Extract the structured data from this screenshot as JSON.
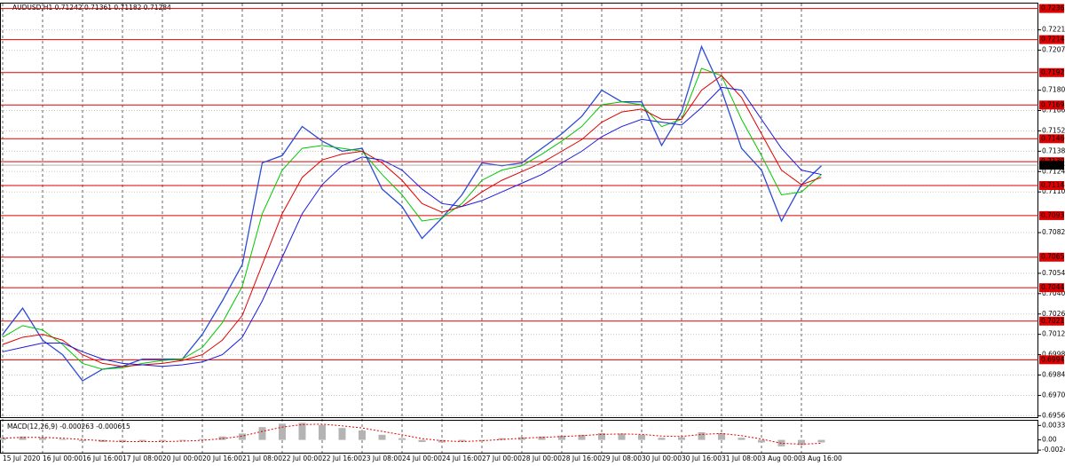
{
  "chart_data": [
    {
      "type": "line",
      "title": "AUDUSD,H1  0.71242 0.71361 0.71182 0.71284",
      "categories": [
        "15 Jul 2020",
        null,
        "16 Jul 00:00",
        null,
        "16 Jul 16:00",
        null,
        "17 Jul 08:00",
        null,
        "20 Jul 00:00",
        null,
        "20 Jul 16:00",
        null,
        "21 Jul 08:00",
        null,
        "22 Jul 00:00",
        null,
        "22 Jul 16:00",
        null,
        "23 Jul 08:00",
        null,
        "24 Jul 00:00",
        null,
        "24 Jul 16:00",
        null,
        "27 Jul 00:00",
        null,
        "28 Jul 00:00",
        null,
        "28 Jul 16:00",
        null,
        "29 Jul 08:00",
        null,
        "30 Jul 00:00",
        null,
        "30 Jul 16:00",
        null,
        "31 Jul 08:00",
        null,
        "3 Aug 00:00",
        null,
        "3 Aug 16:00",
        null
      ],
      "series": [
        {
          "color": "#2b4bd6",
          "values": [
            0.7012,
            0.703,
            0.7008,
            0.6998,
            0.698,
            0.6988,
            0.699,
            0.6995,
            0.6995,
            0.6995,
            0.7012,
            0.7035,
            0.706,
            0.713,
            0.7135,
            0.7155,
            0.7145,
            0.7138,
            0.714,
            0.7112,
            0.71,
            0.7078,
            0.7092,
            0.7108,
            0.713,
            0.7128,
            0.713,
            0.714,
            0.715,
            0.7162,
            0.718,
            0.7172,
            0.7172,
            0.7142,
            0.7165,
            0.721,
            0.718,
            0.714,
            0.7125,
            0.709,
            0.7115,
            0.7128
          ]
        },
        {
          "color": "#00c800",
          "values": [
            0.701,
            0.7018,
            0.7015,
            0.7005,
            0.6992,
            0.6988,
            0.6989,
            0.6992,
            0.6994,
            0.6995,
            0.7003,
            0.702,
            0.7045,
            0.7095,
            0.7125,
            0.714,
            0.7142,
            0.714,
            0.7138,
            0.7122,
            0.7108,
            0.709,
            0.7092,
            0.7102,
            0.7118,
            0.7125,
            0.7128,
            0.7136,
            0.7145,
            0.7155,
            0.717,
            0.7172,
            0.717,
            0.7155,
            0.716,
            0.7195,
            0.719,
            0.716,
            0.7135,
            0.7108,
            0.711,
            0.7122
          ]
        },
        {
          "color": "#e00000",
          "values": [
            0.7005,
            0.701,
            0.7012,
            0.7008,
            0.6998,
            0.6992,
            0.699,
            0.6991,
            0.6992,
            0.6994,
            0.6998,
            0.7008,
            0.7025,
            0.706,
            0.7095,
            0.712,
            0.7132,
            0.7136,
            0.7138,
            0.713,
            0.7118,
            0.7102,
            0.7096,
            0.71,
            0.711,
            0.7118,
            0.7124,
            0.713,
            0.7138,
            0.7146,
            0.7158,
            0.7165,
            0.7167,
            0.716,
            0.716,
            0.718,
            0.719,
            0.7175,
            0.715,
            0.7125,
            0.7115,
            0.712
          ]
        },
        {
          "color": "#1a1ae0",
          "values": [
            0.7,
            0.7003,
            0.7006,
            0.7006,
            0.7,
            0.6995,
            0.6992,
            0.6991,
            0.699,
            0.6991,
            0.6993,
            0.6998,
            0.701,
            0.7035,
            0.7065,
            0.7095,
            0.7115,
            0.7128,
            0.7134,
            0.7132,
            0.7125,
            0.7112,
            0.7102,
            0.71,
            0.7104,
            0.711,
            0.7116,
            0.7122,
            0.713,
            0.7138,
            0.7148,
            0.7155,
            0.716,
            0.7158,
            0.7156,
            0.7168,
            0.7182,
            0.718,
            0.716,
            0.714,
            0.7125,
            0.7122
          ]
        }
      ],
      "ylim": [
        0.6955,
        0.7239
      ],
      "yticks": [
        0.72215,
        0.72075,
        {
          "value": 0.718,
          "label": "0.71800"
        },
        {
          "value": 0.7166,
          "label": "0.71660"
        },
        {
          "value": 0.7152,
          "label": "0.71520"
        },
        {
          "value": 0.7138,
          "label": "0.71380"
        },
        {
          "value": 0.7124,
          "label": "0.71240"
        },
        {
          "value": 0.711,
          "label": "0.71100"
        },
        {
          "value": 0.7082,
          "label": "0.70820"
        },
        {
          "value": 0.7054,
          "label": "0.70540"
        },
        {
          "value": 0.704,
          "label": "0.70400"
        },
        {
          "value": 0.7026,
          "label": "0.70260"
        },
        {
          "value": 0.7012,
          "label": "0.70120"
        },
        {
          "value": 0.6998,
          "label": "0.69980"
        },
        {
          "value": 0.6984,
          "label": "0.69840"
        },
        {
          "value": 0.697,
          "label": "0.69700"
        },
        {
          "value": 0.6956,
          "label": "0.69560"
        }
      ],
      "levels": [
        0.72362,
        0.72148,
        0.71921,
        0.71698,
        0.71466,
        0.71308,
        0.71144,
        0.70937,
        0.70651,
        0.70441,
        0.70211,
        0.69945
      ],
      "level_color": "#e00000",
      "last": 0.71284,
      "grid": true
    },
    {
      "type": "macd",
      "title": "MACD(12,26,9) -0.000263 -0.000615",
      "series": [
        {
          "color": "#b4b4b4",
          "values": [
            0.0005,
            0.0008,
            0.0006,
            0.0002,
            -0.0003,
            -0.0005,
            -0.0005,
            -0.0004,
            -0.0003,
            -0.0002,
            0.0002,
            0.0008,
            0.0015,
            0.003,
            0.0038,
            0.004,
            0.0035,
            0.0028,
            0.0022,
            0.0012,
            0.0004,
            -0.0005,
            -0.0006,
            -0.0004,
            0.0,
            0.0004,
            0.0006,
            0.0008,
            0.001,
            0.0012,
            0.0016,
            0.0015,
            0.0012,
            0.0005,
            0.0006,
            0.0018,
            0.0016,
            0.0005,
            -0.0006,
            -0.0015,
            -0.0012,
            -0.0006
          ]
        },
        {
          "color": "#e00000",
          "values": [
            0.0004,
            0.0006,
            0.0006,
            0.0004,
            0.0001,
            -0.0002,
            -0.0004,
            -0.0004,
            -0.0004,
            -0.0003,
            -0.0001,
            0.0003,
            0.0009,
            0.002,
            0.003,
            0.0036,
            0.0037,
            0.0033,
            0.0028,
            0.002,
            0.0012,
            0.0003,
            -0.0002,
            -0.0004,
            -0.0002,
            0.0001,
            0.0004,
            0.0006,
            0.0008,
            0.001,
            0.0013,
            0.0014,
            0.0013,
            0.0009,
            0.0008,
            0.0013,
            0.0015,
            0.001,
            0.0002,
            -0.0008,
            -0.001,
            -0.0008
          ]
        }
      ],
      "ylim": [
        -0.003,
        0.0045
      ],
      "yticks": [
        0.00339,
        {
          "value": 0,
          "label": "0.00"
        },
        -0.0024
      ]
    }
  ]
}
